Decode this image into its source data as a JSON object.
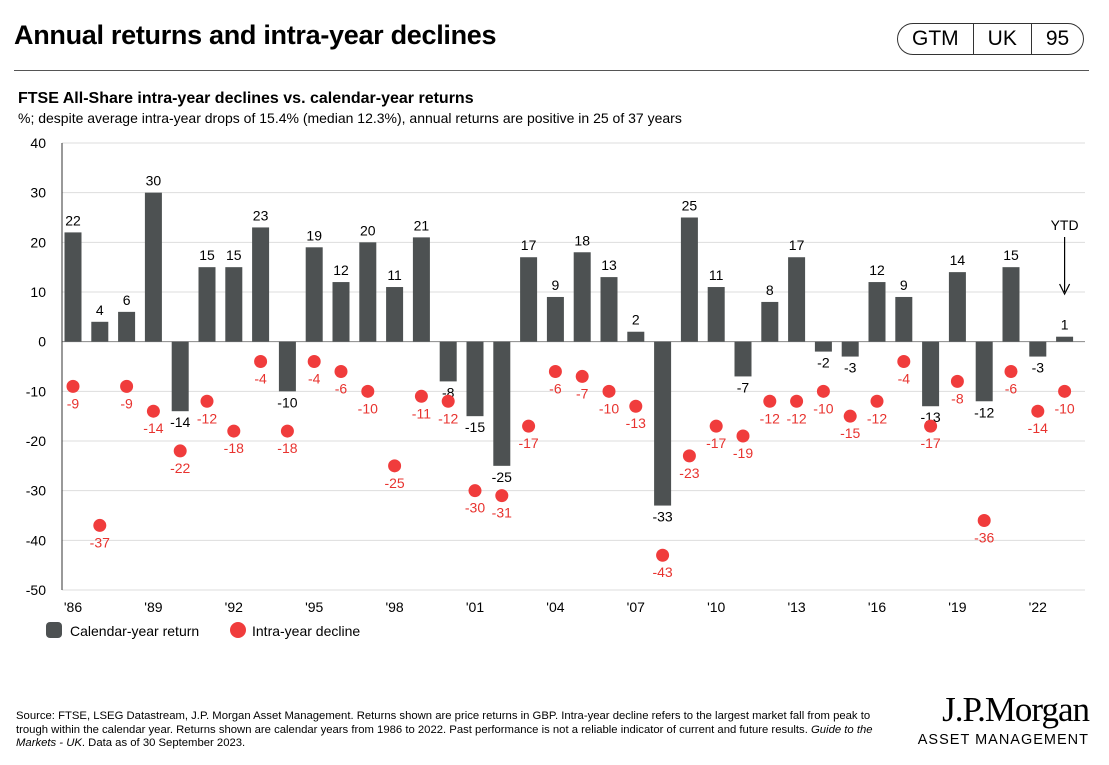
{
  "header": {
    "title": "Annual returns and intra-year declines",
    "badge": [
      "GTM",
      "UK",
      "95"
    ]
  },
  "subtitle": "FTSE All-Share intra-year declines vs. calendar-year returns",
  "description": "%; despite average intra-year drops of 15.4% (median 12.3%), annual returns are positive in 25 of 37 years",
  "chart_data": {
    "type": "bar",
    "years": [
      1986,
      1987,
      1988,
      1989,
      1990,
      1991,
      1992,
      1993,
      1994,
      1995,
      1996,
      1997,
      1998,
      1999,
      2000,
      2001,
      2002,
      2003,
      2004,
      2005,
      2006,
      2007,
      2008,
      2009,
      2010,
      2011,
      2012,
      2013,
      2014,
      2015,
      2016,
      2017,
      2018,
      2019,
      2020,
      2021,
      2022,
      2023
    ],
    "series": [
      {
        "name": "Calendar-year return",
        "type": "bar",
        "color": "#4d5152",
        "values": [
          22,
          4,
          6,
          30,
          -14,
          15,
          15,
          23,
          -10,
          19,
          12,
          20,
          11,
          21,
          -8,
          -15,
          -25,
          17,
          9,
          18,
          13,
          2,
          -33,
          25,
          11,
          -7,
          8,
          17,
          -2,
          -3,
          12,
          9,
          -13,
          14,
          -12,
          15,
          -3,
          1
        ]
      },
      {
        "name": "Intra-year decline",
        "type": "scatter",
        "color": "#f03c3c",
        "values": [
          -9,
          -37,
          -9,
          -14,
          -22,
          -12,
          -18,
          -4,
          -18,
          -4,
          -6,
          -10,
          -25,
          -11,
          -12,
          -30,
          -31,
          -17,
          -6,
          -7,
          -10,
          -13,
          -43,
          -23,
          -17,
          -19,
          -12,
          -12,
          -10,
          -15,
          -12,
          -4,
          -17,
          -8,
          -36,
          -6,
          -14,
          -10
        ]
      }
    ],
    "xtick_labels": [
      "'86",
      "'89",
      "'92",
      "'95",
      "'98",
      "'01",
      "'04",
      "'07",
      "'10",
      "'13",
      "'16",
      "'19",
      "'22"
    ],
    "yticks": [
      40,
      30,
      20,
      10,
      0,
      -10,
      -20,
      -30,
      -40,
      -50
    ],
    "ylim": [
      -50,
      40
    ],
    "grid": true,
    "legend": "bottom-left",
    "annotation": "YTD"
  },
  "footer": {
    "source": "Source: FTSE, LSEG Datastream, J.P. Morgan Asset Management. Returns shown are price returns in GBP. Intra-year decline refers to the largest market fall from peak to trough within the calendar year. Returns shown are calendar years from 1986 to 2022. Past performance is not a reliable indicator of current and future results. ",
    "guide": "Guide to the Markets - UK",
    "asof": ". Data as of 30 September 2023."
  },
  "logo": {
    "name": "J.P.Morgan",
    "sub": "ASSET MANAGEMENT"
  }
}
